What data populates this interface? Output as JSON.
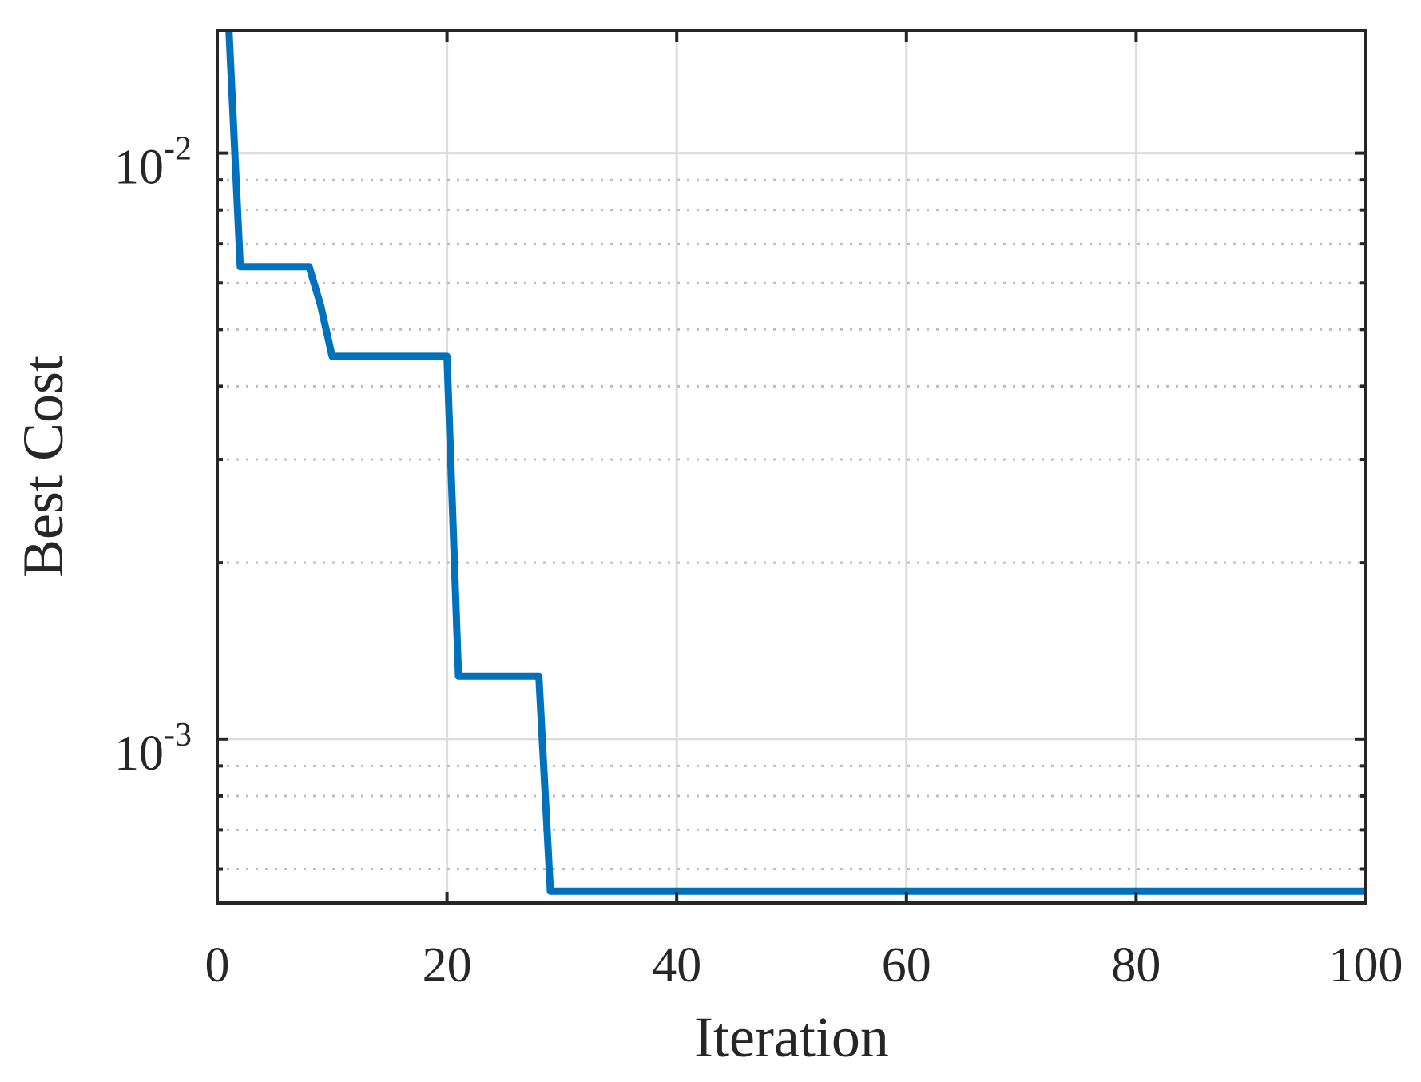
{
  "chart_data": {
    "type": "line",
    "title": "",
    "xlabel": "Iteration",
    "ylabel": "Best Cost",
    "xlim": [
      0,
      100
    ],
    "ylim": [
      0.000525,
      0.0162
    ],
    "yscale": "log",
    "grid": "on",
    "minor_grid": "on",
    "legend": "none",
    "x_ticks": [
      {
        "value": 0,
        "label": "0"
      },
      {
        "value": 20,
        "label": "20"
      },
      {
        "value": 40,
        "label": "40"
      },
      {
        "value": 60,
        "label": "60"
      },
      {
        "value": 80,
        "label": "80"
      },
      {
        "value": 100,
        "label": "100"
      }
    ],
    "y_ticks": [
      {
        "value": 0.01,
        "mantissa": "10",
        "exponent": "-2"
      },
      {
        "value": 0.001,
        "mantissa": "10",
        "exponent": "-3"
      }
    ],
    "series": [
      {
        "color": "#0072BD",
        "x": [
          1,
          2,
          3,
          4,
          5,
          6,
          7,
          8,
          9,
          10,
          11,
          12,
          13,
          14,
          15,
          16,
          17,
          18,
          19,
          20,
          21,
          22,
          23,
          24,
          25,
          26,
          27,
          28,
          29,
          30,
          35,
          40,
          45,
          50,
          55,
          60,
          65,
          70,
          75,
          80,
          85,
          90,
          95,
          100
        ],
        "y": [
          0.0165,
          0.0064,
          0.0064,
          0.0064,
          0.0064,
          0.0064,
          0.0064,
          0.0064,
          0.0055,
          0.0045,
          0.0045,
          0.0045,
          0.0045,
          0.0045,
          0.0045,
          0.0045,
          0.0045,
          0.0045,
          0.0045,
          0.0045,
          0.00128,
          0.00128,
          0.00128,
          0.00128,
          0.00128,
          0.00128,
          0.00128,
          0.00128,
          0.00055,
          0.00055,
          0.00055,
          0.00055,
          0.00055,
          0.00055,
          0.00055,
          0.00055,
          0.00055,
          0.00055,
          0.00055,
          0.00055,
          0.00055,
          0.00055,
          0.00055,
          0.00055
        ]
      }
    ]
  }
}
